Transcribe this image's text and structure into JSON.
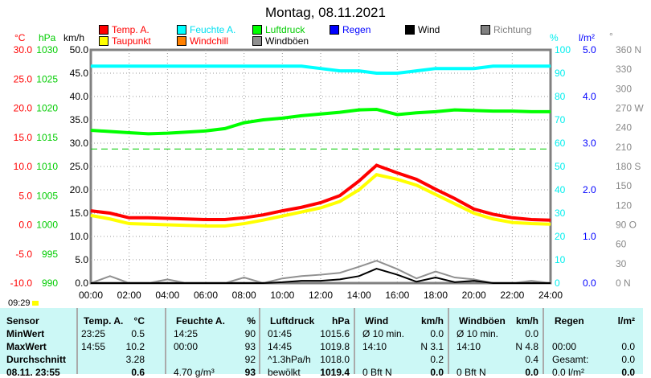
{
  "title": "Montag, 08.11.2021",
  "units": {
    "temp": "°C",
    "press": "hPa",
    "wind": "km/h",
    "hum": "%",
    "rain": "l/m²",
    "dir": "°"
  },
  "legend": [
    {
      "label": "Temp. A.",
      "color": "#ff0000",
      "text": "#ff0000"
    },
    {
      "label": "Taupunkt",
      "color": "#ffff00",
      "text": "#ff0000"
    },
    {
      "label": "Feuchte A.",
      "color": "#00ffff",
      "text": "#00e0f0"
    },
    {
      "label": "Windchill",
      "color": "#ff8000",
      "text": "#ff0000"
    },
    {
      "label": "Luftdruck",
      "color": "#00ff00",
      "text": "#00cc00"
    },
    {
      "label": "Windböen",
      "color": "#909090",
      "text": "#000000"
    },
    {
      "label": "Regen",
      "color": "#0000ff",
      "text": "#0000ff"
    },
    {
      "label": "Wind",
      "color": "#000000",
      "text": "#000000"
    },
    {
      "label": "Richtung",
      "color": "#808080",
      "text": "#808080"
    }
  ],
  "time_label": "09:29",
  "chart_data": {
    "type": "line",
    "title": "Montag, 08.11.2021",
    "x": [
      "00:00",
      "01:00",
      "02:00",
      "03:00",
      "04:00",
      "05:00",
      "06:00",
      "07:00",
      "08:00",
      "09:00",
      "10:00",
      "11:00",
      "12:00",
      "13:00",
      "14:00",
      "14:55",
      "16:00",
      "17:00",
      "18:00",
      "19:00",
      "20:00",
      "21:00",
      "22:00",
      "23:00",
      "24:00"
    ],
    "xticks": [
      "00:00",
      "02:00",
      "04:00",
      "06:00",
      "08:00",
      "10:00",
      "12:00",
      "14:00",
      "16:00",
      "18:00",
      "20:00",
      "22:00",
      "24:00"
    ],
    "axes": {
      "temp": {
        "range": [
          -10,
          30
        ],
        "ticks": [
          "30.0",
          "25.0",
          "20.0",
          "15.0",
          "10.0",
          "5.0",
          "0.0",
          "-5.0",
          "-10.0"
        ]
      },
      "press": {
        "range": [
          990,
          1030
        ],
        "ticks": [
          "1030",
          "1025",
          "1020",
          "1015",
          "1010",
          "1005",
          "1000",
          "995",
          "990"
        ]
      },
      "wind": {
        "range": [
          0,
          50
        ],
        "ticks": [
          "50.0",
          "45.0",
          "40.0",
          "35.0",
          "30.0",
          "25.0",
          "20.0",
          "15.0",
          "10.0",
          "5.0",
          "0.0"
        ]
      },
      "hum": {
        "range": [
          0,
          100
        ],
        "ticks": [
          "100",
          "90",
          "80",
          "70",
          "60",
          "50",
          "40",
          "30",
          "20",
          "10",
          "0"
        ]
      },
      "rain": {
        "range": [
          0,
          5
        ],
        "ticks": [
          "5.0",
          "4.0",
          "3.0",
          "2.0",
          "1.0",
          "0.0"
        ]
      },
      "dir": {
        "range": [
          0,
          360
        ],
        "ticks": [
          "360 N",
          "330",
          "300",
          "270 W",
          "240",
          "210",
          "180 S",
          "150",
          "120",
          "90 O",
          "60",
          "30",
          "0 N"
        ]
      }
    },
    "series": [
      {
        "name": "Temp. A.",
        "axis": "temp",
        "color": "#ff0000",
        "values": [
          2.4,
          2.0,
          1.2,
          1.2,
          1.1,
          1.0,
          0.9,
          0.9,
          1.2,
          1.7,
          2.4,
          3.0,
          3.8,
          5.0,
          7.5,
          10.2,
          8.9,
          7.8,
          6.1,
          4.5,
          2.7,
          1.8,
          1.2,
          0.9,
          0.8
        ]
      },
      {
        "name": "Taupunkt",
        "axis": "temp",
        "color": "#ffff00",
        "values": [
          1.6,
          1.0,
          0.2,
          0.1,
          0.0,
          -0.1,
          -0.2,
          -0.2,
          0.2,
          0.8,
          1.5,
          2.2,
          2.9,
          4.0,
          6.0,
          8.6,
          7.8,
          6.8,
          5.2,
          3.6,
          2.0,
          1.0,
          0.4,
          0.2,
          0.1
        ]
      },
      {
        "name": "Feuchte A.",
        "axis": "hum",
        "color": "#00ffff",
        "values": [
          93,
          93,
          93,
          93,
          93,
          93,
          93,
          93,
          93,
          93,
          93,
          93,
          92,
          91,
          91,
          90,
          90,
          91,
          92,
          92,
          92,
          93,
          93,
          93,
          93
        ]
      },
      {
        "name": "Luftdruck",
        "axis": "press",
        "color": "#00ff00",
        "values": [
          1016.2,
          1016.0,
          1015.8,
          1015.6,
          1015.7,
          1015.9,
          1016.1,
          1016.5,
          1017.5,
          1018.0,
          1018.3,
          1018.7,
          1019.0,
          1019.3,
          1019.7,
          1019.8,
          1018.9,
          1019.2,
          1019.4,
          1019.7,
          1019.6,
          1019.5,
          1019.5,
          1019.4,
          1019.4
        ]
      },
      {
        "name": "Wind",
        "axis": "wind",
        "color": "#000000",
        "values": [
          0,
          0,
          0,
          0,
          0,
          0,
          0,
          0,
          0,
          0,
          0.2,
          0.5,
          0.5,
          0.8,
          1.5,
          3.1,
          1.8,
          0.3,
          1.2,
          0.2,
          0.5,
          0,
          0,
          0,
          0
        ]
      },
      {
        "name": "Windböen",
        "axis": "wind",
        "color": "#909090",
        "values": [
          0,
          1.5,
          0,
          0,
          0.8,
          0,
          0,
          0,
          1.2,
          0,
          1.0,
          1.5,
          1.8,
          2.2,
          3.5,
          4.8,
          3.0,
          1.0,
          2.5,
          1.2,
          0.8,
          0,
          0,
          0.5,
          0
        ]
      }
    ],
    "reference_line": {
      "axis": "press",
      "value": 1013
    }
  },
  "table": {
    "headers": [
      "Sensor",
      "Temp. A.",
      "°C",
      "Feuchte A.",
      "%",
      "Luftdruck",
      "hPa",
      "Wind",
      "km/h",
      "Windböen",
      "km/h",
      "Regen",
      "l/m²"
    ],
    "rows": [
      [
        "MinWert",
        "23:25",
        "0.5",
        "14:25",
        "90",
        "01:45",
        "1015.6",
        "Ø 10 min.",
        "0.0",
        "Ø 10 min.",
        "0.0",
        "",
        ""
      ],
      [
        "MaxWert",
        "14:55",
        "10.2",
        "00:00",
        "93",
        "14:45",
        "1019.8",
        "14:10",
        "N 3.1",
        "14:10",
        "N 4.8",
        "00:00",
        "0.0"
      ],
      [
        "Durchschnitt",
        "",
        "3.28",
        "",
        "92",
        "^1.3hPa/h",
        "1018.0",
        "",
        "0.2",
        "",
        "0.4",
        "Gesamt:",
        "0.0"
      ],
      [
        "08.11. 23:55",
        "",
        "0.6",
        "4.70 g/m³",
        "93",
        "bewölkt",
        "1019.4",
        "0 Bft N",
        "0.0",
        "0 Bft N",
        "0.0",
        "0.0 l/m²",
        "0.0"
      ]
    ]
  }
}
